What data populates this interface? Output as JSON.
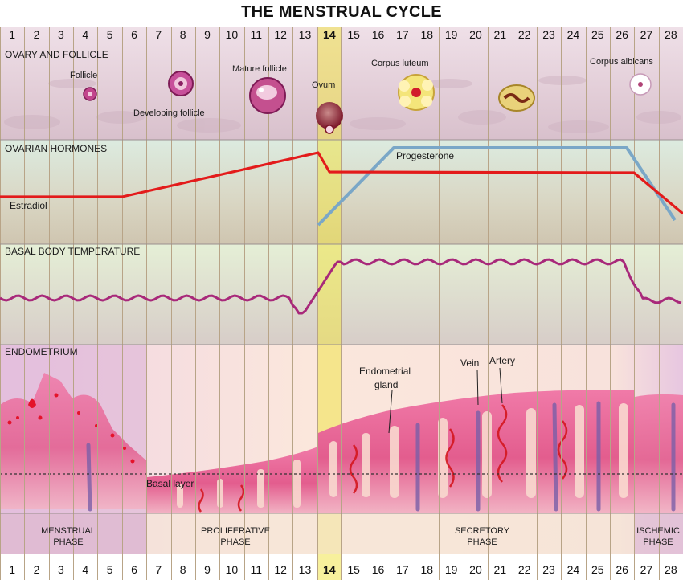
{
  "title": "THE MENSTRUAL CYCLE",
  "days": [
    "1",
    "2",
    "3",
    "4",
    "5",
    "6",
    "7",
    "8",
    "9",
    "10",
    "11",
    "12",
    "13",
    "14",
    "15",
    "16",
    "17",
    "18",
    "19",
    "20",
    "21",
    "22",
    "23",
    "24",
    "25",
    "26",
    "27",
    "28"
  ],
  "highlight_day": "14",
  "sections": {
    "ovary": "OVARY AND FOLLICLE",
    "hormones": "OVARIAN HORMONES",
    "temperature": "BASAL BODY TEMPERATURE",
    "endometrium": "ENDOMETRIUM"
  },
  "ovary_labels": {
    "follicle": "Follicle",
    "developing": "Developing follicle",
    "mature": "Mature follicle",
    "ovum": "Ovum",
    "luteum": "Corpus luteum",
    "albicans": "Corpus albicans"
  },
  "hormone_labels": {
    "estradiol": "Estradiol",
    "progesterone": "Progesterone"
  },
  "endometrium_labels": {
    "gland_line1": "Endometrial",
    "gland_line2": "gland",
    "vein": "Vein",
    "artery": "Artery",
    "basal": "Basal layer"
  },
  "phases": {
    "menstrual": [
      "MENSTRUAL",
      "PHASE"
    ],
    "proliferative": [
      "PROLIFERATIVE",
      "PHASE"
    ],
    "secretory": [
      "SECRETORY",
      "PHASE"
    ],
    "ischemic": [
      "ISCHEMIC",
      "PHASE"
    ]
  },
  "colors": {
    "estradiol": "#e31b1b",
    "progesterone": "#7aa7c7",
    "temperature": "#a8287a",
    "ovulation_highlight": "#f1e34a",
    "endometrium": "#e06a96"
  }
}
